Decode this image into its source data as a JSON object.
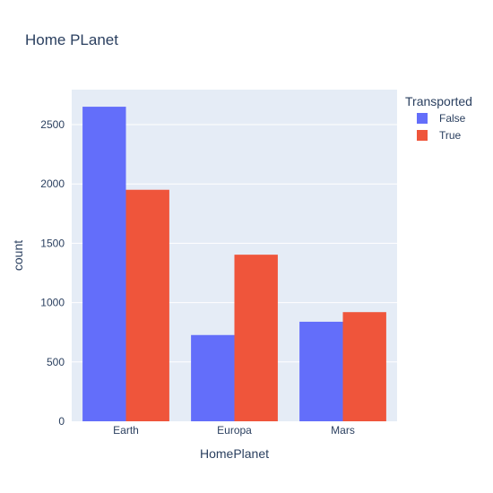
{
  "chart_data": {
    "type": "bar",
    "title": "Home PLanet",
    "xlabel": "HomePlanet",
    "ylabel": "count",
    "categories": [
      "Earth",
      "Europa",
      "Mars"
    ],
    "series": [
      {
        "name": "False",
        "values": [
          2651,
          727,
          839
        ]
      },
      {
        "name": "True",
        "values": [
          1951,
          1404,
          920
        ]
      }
    ],
    "ylim": [
      0,
      2795
    ],
    "yticks": [
      0,
      500,
      1000,
      1500,
      2000,
      2500
    ],
    "grid": true,
    "barmode": "group",
    "legend": {
      "title": "Transported",
      "position": "top-right"
    },
    "colors": {
      "False": "#636efa",
      "True": "#ef553b",
      "plot_bg": "#e5ecf6",
      "grid": "#ffffff",
      "text": "#2a3f5f"
    }
  }
}
